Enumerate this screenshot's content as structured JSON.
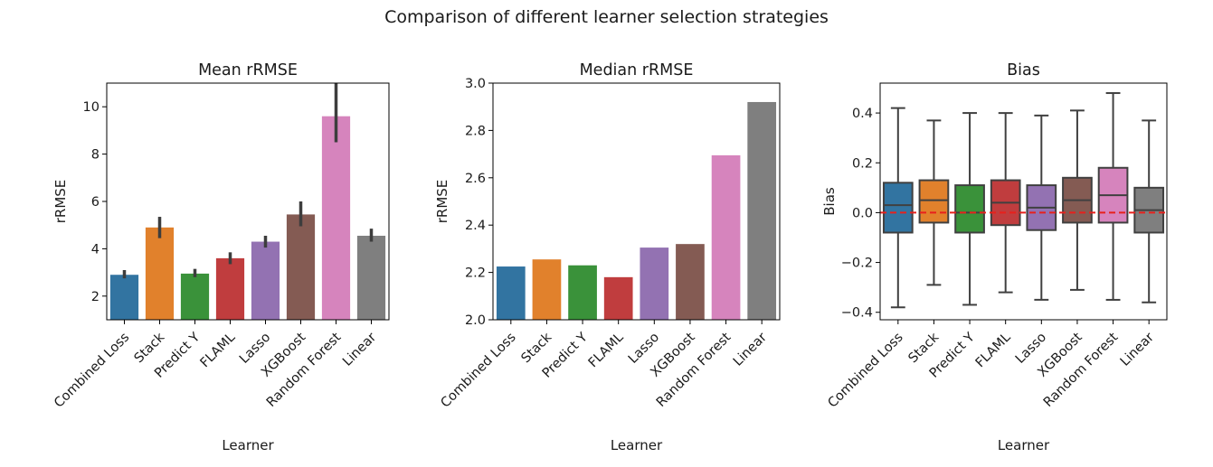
{
  "title": "Comparison of different learner selection strategies",
  "colors": [
    "#3274a1",
    "#e1812c",
    "#3a923a",
    "#c03d3e",
    "#9372b2",
    "#845b53",
    "#d684bd",
    "#7f7f7f"
  ],
  "chart_data": [
    {
      "type": "bar",
      "title": "Mean rRMSE",
      "xlabel": "Learner",
      "ylabel": "rRMSE",
      "ylim": [
        1,
        11
      ],
      "yticks": [
        2,
        4,
        6,
        8,
        10
      ],
      "categories": [
        "Combined Loss",
        "Stack",
        "Predict Y",
        "FLAML",
        "Lasso",
        "XGBoost",
        "Random Forest",
        "Linear"
      ],
      "values": [
        2.9,
        4.9,
        2.95,
        3.6,
        4.3,
        5.45,
        9.6,
        4.55
      ],
      "error_bars": [
        [
          2.75,
          3.1
        ],
        [
          4.45,
          5.35
        ],
        [
          2.8,
          3.15
        ],
        [
          3.35,
          3.85
        ],
        [
          4.05,
          4.55
        ],
        [
          4.95,
          6.0
        ],
        [
          8.5,
          11.0
        ],
        [
          4.3,
          4.85
        ]
      ]
    },
    {
      "type": "bar",
      "title": "Median rRMSE",
      "xlabel": "Learner",
      "ylabel": "rRMSE",
      "ylim": [
        2.0,
        3.0
      ],
      "yticks": [
        "2.0",
        "2.2",
        "2.4",
        "2.6",
        "2.8",
        "3.0"
      ],
      "categories": [
        "Combined Loss",
        "Stack",
        "Predict Y",
        "FLAML",
        "Lasso",
        "XGBoost",
        "Random Forest",
        "Linear"
      ],
      "values": [
        2.225,
        2.255,
        2.23,
        2.18,
        2.305,
        2.32,
        2.695,
        2.92
      ]
    },
    {
      "type": "box",
      "title": "Bias",
      "xlabel": "Learner",
      "ylabel": "Bias",
      "ylim": [
        -0.43,
        0.52
      ],
      "yticks": [
        "−0.4",
        "−0.2",
        "0.0",
        "0.2",
        "0.4"
      ],
      "reference_line": 0.0,
      "categories": [
        "Combined Loss",
        "Stack",
        "Predict Y",
        "FLAML",
        "Lasso",
        "XGBoost",
        "Random Forest",
        "Linear"
      ],
      "boxes": [
        {
          "whislo": -0.38,
          "q1": -0.08,
          "med": 0.03,
          "q3": 0.12,
          "whishi": 0.42
        },
        {
          "whislo": -0.29,
          "q1": -0.04,
          "med": 0.05,
          "q3": 0.13,
          "whishi": 0.37
        },
        {
          "whislo": -0.37,
          "q1": -0.08,
          "med": 0.0,
          "q3": 0.11,
          "whishi": 0.4
        },
        {
          "whislo": -0.32,
          "q1": -0.05,
          "med": 0.04,
          "q3": 0.13,
          "whishi": 0.4
        },
        {
          "whislo": -0.35,
          "q1": -0.07,
          "med": 0.02,
          "q3": 0.11,
          "whishi": 0.39
        },
        {
          "whislo": -0.31,
          "q1": -0.04,
          "med": 0.05,
          "q3": 0.14,
          "whishi": 0.41
        },
        {
          "whislo": -0.35,
          "q1": -0.04,
          "med": 0.07,
          "q3": 0.18,
          "whishi": 0.48
        },
        {
          "whislo": -0.36,
          "q1": -0.08,
          "med": 0.01,
          "q3": 0.1,
          "whishi": 0.37
        }
      ]
    }
  ]
}
